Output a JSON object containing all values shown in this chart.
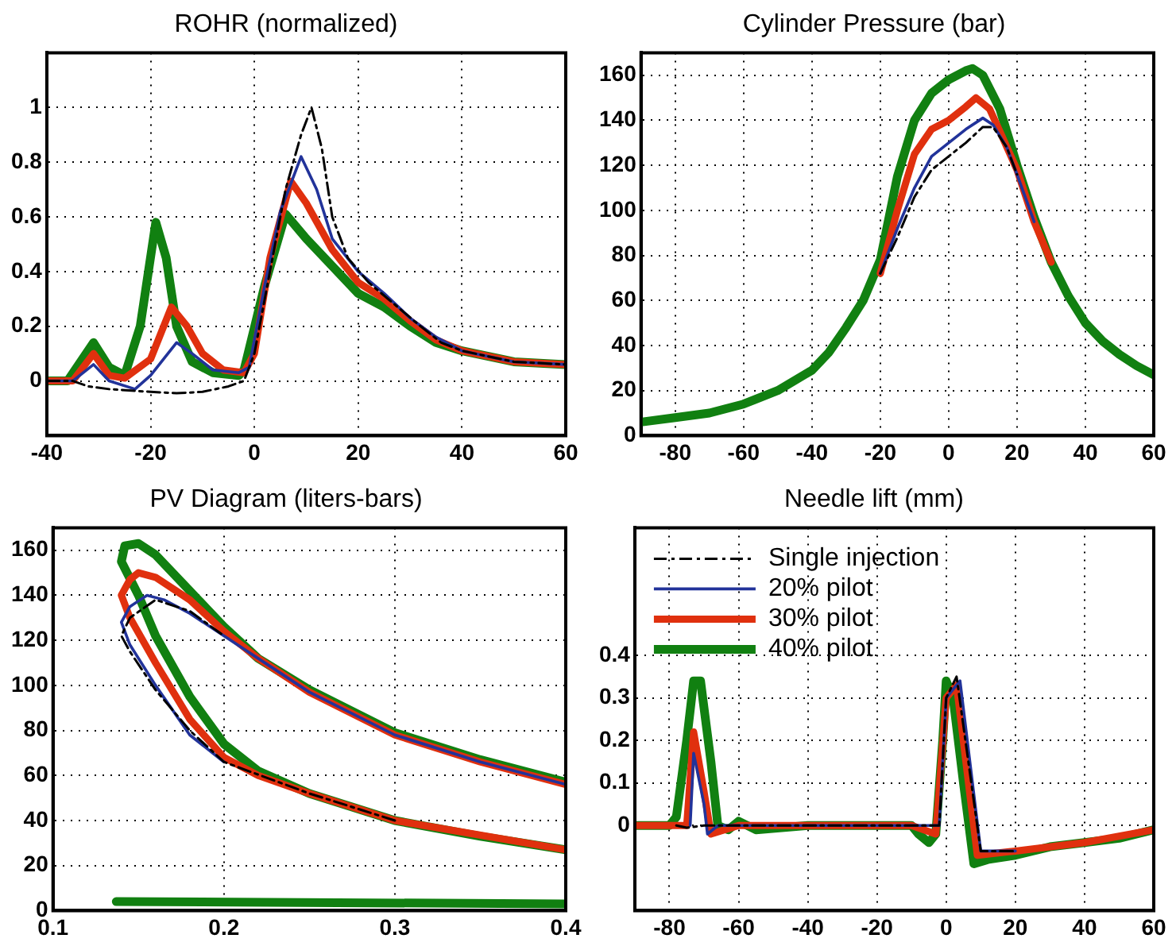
{
  "chart_data": [
    {
      "type": "line",
      "title": "ROHR (normalized)",
      "xlim": [
        -40,
        60
      ],
      "xticks": [
        -40,
        -20,
        0,
        20,
        40,
        60
      ],
      "ylim": [
        -0.2,
        1.2
      ],
      "yticks": [
        0,
        0.2,
        0.4,
        0.6,
        0.8,
        1
      ],
      "grid": true,
      "legend": false,
      "series": [
        {
          "color": "#000000",
          "line_style": "dashed",
          "x": [
            -40,
            -35,
            -32,
            -28,
            -20,
            -15,
            -10,
            -5,
            -2,
            0,
            3,
            6,
            9,
            11,
            13,
            15,
            18,
            22,
            27,
            32,
            36,
            40,
            50,
            60
          ],
          "values": [
            0,
            0,
            -0.02,
            -0.03,
            -0.04,
            -0.045,
            -0.04,
            -0.02,
            0,
            0.1,
            0.4,
            0.7,
            0.9,
            1,
            0.85,
            0.6,
            0.45,
            0.36,
            0.28,
            0.2,
            0.14,
            0.11,
            0.07,
            0.06
          ]
        },
        {
          "color": "#22339a",
          "line_style": "solid",
          "x": [
            -40,
            -35,
            -31,
            -28,
            -23,
            -20,
            -15,
            -12,
            -8,
            -3,
            -1,
            2,
            5,
            9,
            12,
            15,
            20,
            25,
            30,
            35,
            40,
            50,
            60
          ],
          "values": [
            0,
            0,
            0.06,
            0,
            -0.03,
            0.02,
            0.14,
            0.1,
            0.04,
            0.03,
            0.05,
            0.35,
            0.62,
            0.82,
            0.7,
            0.52,
            0.4,
            0.32,
            0.23,
            0.16,
            0.11,
            0.07,
            0.06
          ]
        },
        {
          "color": "#e0300e",
          "line_style": "solid",
          "x": [
            -40,
            -35,
            -31,
            -28,
            -25,
            -20,
            -16,
            -13,
            -10,
            -6,
            -2,
            0,
            3,
            7,
            10,
            15,
            20,
            25,
            30,
            35,
            40,
            50,
            60
          ],
          "values": [
            0,
            0,
            0.1,
            0.02,
            0.01,
            0.08,
            0.27,
            0.2,
            0.1,
            0.04,
            0.03,
            0.1,
            0.45,
            0.73,
            0.65,
            0.48,
            0.36,
            0.3,
            0.22,
            0.15,
            0.11,
            0.07,
            0.06
          ]
        },
        {
          "color": "#118011",
          "line_style": "solid",
          "x": [
            -40,
            -36,
            -31,
            -28,
            -25,
            -22,
            -19,
            -17,
            -15,
            -12,
            -8,
            -3,
            -2,
            2,
            6,
            10,
            15,
            20,
            25,
            30,
            35,
            40,
            50,
            60
          ],
          "values": [
            0,
            0,
            0.14,
            0.05,
            0.02,
            0.2,
            0.58,
            0.45,
            0.2,
            0.07,
            0.03,
            0.02,
            0.04,
            0.35,
            0.61,
            0.52,
            0.42,
            0.32,
            0.27,
            0.2,
            0.14,
            0.11,
            0.07,
            0.06
          ]
        }
      ]
    },
    {
      "type": "line",
      "title": "Cylinder Pressure (bar)",
      "xlim": [
        -90,
        60
      ],
      "xticks": [
        -80,
        -60,
        -40,
        -20,
        0,
        20,
        40,
        60
      ],
      "ylim": [
        0,
        170
      ],
      "yticks": [
        0,
        20,
        40,
        60,
        80,
        100,
        120,
        140,
        160
      ],
      "grid": true,
      "legend": false,
      "series": [
        {
          "color": "#000000",
          "line_style": "dashed",
          "x": [
            -20,
            -15,
            -10,
            -5,
            0,
            5,
            10,
            13,
            17,
            20
          ],
          "values": [
            72,
            88,
            106,
            118,
            124,
            130,
            137,
            137,
            128,
            116
          ]
        },
        {
          "color": "#22339a",
          "line_style": "solid",
          "x": [
            -20,
            -15,
            -10,
            -5,
            0,
            5,
            10,
            13,
            17,
            20,
            25
          ],
          "values": [
            72,
            92,
            110,
            124,
            130,
            136,
            141,
            138,
            128,
            116,
            95
          ]
        },
        {
          "color": "#e0300e",
          "line_style": "solid",
          "x": [
            -20,
            -15,
            -10,
            -5,
            0,
            5,
            8,
            12,
            15,
            20,
            25,
            30
          ],
          "values": [
            72,
            100,
            125,
            136,
            140,
            146,
            150,
            145,
            135,
            118,
            95,
            77
          ]
        },
        {
          "color": "#118011",
          "line_style": "solid",
          "x": [
            -90,
            -80,
            -70,
            -60,
            -50,
            -40,
            -35,
            -30,
            -25,
            -20,
            -15,
            -10,
            -5,
            0,
            5,
            7,
            10,
            15,
            20,
            25,
            30,
            35,
            40,
            45,
            50,
            55,
            60
          ],
          "values": [
            6,
            8,
            10,
            14,
            20,
            29,
            37,
            48,
            60,
            78,
            115,
            140,
            152,
            158,
            162,
            163,
            160,
            145,
            120,
            97,
            77,
            62,
            50,
            42,
            36,
            31,
            27
          ]
        }
      ]
    },
    {
      "type": "line",
      "title": "PV Diagram (liters-bars)",
      "xlim": [
        0.1,
        0.4
      ],
      "xticks": [
        0.1,
        0.2,
        0.3,
        0.4
      ],
      "ylim": [
        0,
        170
      ],
      "yticks": [
        0,
        20,
        40,
        60,
        80,
        100,
        120,
        140,
        160
      ],
      "grid": true,
      "legend": false,
      "series": [
        {
          "color": "#000000",
          "line_style": "dashed",
          "x": [
            0.3,
            0.25,
            0.2,
            0.18,
            0.16,
            0.145,
            0.14,
            0.145,
            0.16,
            0.18,
            0.2
          ],
          "values": [
            40,
            52,
            66,
            80,
            98,
            115,
            122,
            130,
            138,
            133,
            122
          ]
        },
        {
          "color": "#22339a",
          "line_style": "solid",
          "x": [
            0.2,
            0.18,
            0.16,
            0.145,
            0.14,
            0.145,
            0.155,
            0.165,
            0.18,
            0.2,
            0.25,
            0.3,
            0.35,
            0.4
          ],
          "values": [
            66,
            78,
            100,
            118,
            128,
            135,
            140,
            138,
            132,
            122,
            97,
            78,
            66,
            56
          ]
        },
        {
          "color": "#e0300e",
          "line_style": "solid",
          "x": [
            0.4,
            0.3,
            0.25,
            0.22,
            0.2,
            0.18,
            0.16,
            0.145,
            0.14,
            0.145,
            0.15,
            0.16,
            0.18,
            0.2,
            0.22,
            0.25,
            0.3,
            0.35,
            0.4
          ],
          "values": [
            27,
            40,
            52,
            60,
            68,
            85,
            110,
            130,
            140,
            147,
            150,
            148,
            138,
            124,
            112,
            97,
            78,
            66,
            56
          ]
        },
        {
          "color": "#118011",
          "line_style": "solid",
          "x": [
            0.4,
            0.35,
            0.3,
            0.25,
            0.22,
            0.2,
            0.18,
            0.16,
            0.15,
            0.14,
            0.142,
            0.15,
            0.16,
            0.18,
            0.2,
            0.22,
            0.25,
            0.3,
            0.35,
            0.4
          ],
          "values": [
            27,
            33,
            40,
            52,
            62,
            74,
            95,
            122,
            140,
            155,
            162,
            163,
            158,
            142,
            126,
            112,
            98,
            79,
            67,
            57
          ]
        },
        {
          "color": "#118011",
          "line_style": "solid",
          "x": [
            0.137,
            0.4
          ],
          "values": [
            4,
            3
          ]
        }
      ]
    },
    {
      "type": "line",
      "title": "Needle lift (mm)",
      "xlim": [
        -90,
        60
      ],
      "xticks": [
        -80,
        -60,
        -40,
        -20,
        0,
        20,
        40,
        60
      ],
      "ylim": [
        -0.2,
        0.7
      ],
      "yticks": [
        0,
        0.1,
        0.2,
        0.3,
        0.4
      ],
      "grid": true,
      "legend": "top left",
      "series": [
        {
          "name": "Single injection",
          "color": "#000000",
          "line_style": "dashed",
          "x": [
            -78,
            -75,
            -70,
            -2,
            0,
            3,
            10,
            20
          ],
          "values": [
            0,
            -0.005,
            0,
            0,
            0.3,
            0.35,
            -0.06,
            -0.06
          ]
        },
        {
          "name": "20% pilot",
          "color": "#22339a",
          "line_style": "solid",
          "x": [
            -74,
            -73,
            -70,
            -69,
            -66,
            -10,
            -2,
            0,
            4,
            10,
            20
          ],
          "values": [
            0,
            0.17,
            0.05,
            -0.02,
            0,
            0,
            0,
            0.3,
            0.34,
            -0.06,
            -0.06
          ]
        },
        {
          "name": "30% pilot",
          "color": "#e0300e",
          "line_style": "solid",
          "x": [
            -90,
            -75,
            -73,
            -70,
            -68,
            -60,
            -10,
            -3,
            0,
            3,
            9,
            20,
            40,
            60
          ],
          "values": [
            0,
            0,
            0.22,
            0.08,
            -0.02,
            0,
            0,
            -0.02,
            0.3,
            0.33,
            -0.07,
            -0.06,
            -0.04,
            -0.01
          ]
        },
        {
          "name": "40% pilot",
          "color": "#118011",
          "line_style": "solid",
          "x": [
            -90,
            -80,
            -78,
            -75,
            -73,
            -71,
            -68,
            -66,
            -63,
            -60,
            -55,
            -40,
            -20,
            -10,
            -8,
            -5,
            -3,
            -1,
            0,
            2,
            5,
            8,
            12,
            20,
            30,
            40,
            50,
            60
          ],
          "values": [
            0,
            0,
            0.02,
            0.2,
            0.34,
            0.34,
            0.15,
            0,
            -0.01,
            0.01,
            -0.01,
            0,
            0,
            0,
            -0.02,
            -0.04,
            -0.02,
            0.2,
            0.34,
            0.3,
            0.1,
            -0.09,
            -0.08,
            -0.07,
            -0.05,
            -0.04,
            -0.03,
            -0.01
          ]
        }
      ]
    }
  ]
}
